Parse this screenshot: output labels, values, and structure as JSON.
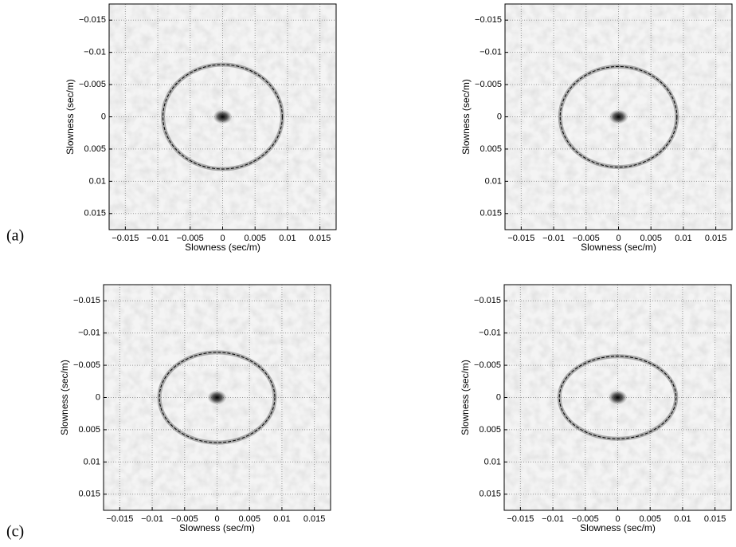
{
  "chart_data": [
    {
      "type": "slowness-map",
      "panel_label": "(a)",
      "xlabel": "Slowness (sec/m)",
      "ylabel": "Slowness (sec/m)",
      "xlim": [
        -0.0175,
        0.0175
      ],
      "ylim": [
        -0.0175,
        0.0175
      ],
      "y_reversed": true,
      "grid": true,
      "xticks": [
        {
          "value": -0.015,
          "label": "−0.015"
        },
        {
          "value": -0.01,
          "label": "−0.01"
        },
        {
          "value": -0.005,
          "label": "−0.005"
        },
        0,
        0.005,
        0.01,
        0.015
      ],
      "yticks": [
        {
          "value": -0.015,
          "label": "−0.015"
        },
        {
          "value": -0.01,
          "label": "−0.01"
        },
        {
          "value": -0.005,
          "label": "−0.005"
        },
        0,
        0.005,
        0.01,
        0.015
      ],
      "ellipse": {
        "cx": 0,
        "cy": 0,
        "rx": 0.0092,
        "ry": 0.0081
      }
    },
    {
      "type": "slowness-map",
      "xlabel": "Slowness (sec/m)",
      "ylabel": "Slowness (sec/m)",
      "xlim": [
        -0.0175,
        0.0175
      ],
      "ylim": [
        -0.0175,
        0.0175
      ],
      "y_reversed": true,
      "grid": true,
      "xticks": [
        {
          "value": -0.015,
          "label": "−0.015"
        },
        {
          "value": -0.01,
          "label": "−0.01"
        },
        {
          "value": -0.005,
          "label": "−0.005"
        },
        0,
        0.005,
        0.01,
        0.015
      ],
      "yticks": [
        {
          "value": -0.015,
          "label": "−0.015"
        },
        {
          "value": -0.01,
          "label": "−0.01"
        },
        {
          "value": -0.005,
          "label": "−0.005"
        },
        0,
        0.005,
        0.01,
        0.015
      ],
      "ellipse": {
        "cx": 0,
        "cy": 0,
        "rx": 0.009,
        "ry": 0.0078
      }
    },
    {
      "type": "slowness-map",
      "panel_label": "(c)",
      "xlabel": "Slowness (sec/m)",
      "ylabel": "Slowness (sec/m)",
      "xlim": [
        -0.0175,
        0.0175
      ],
      "ylim": [
        -0.0175,
        0.0175
      ],
      "y_reversed": true,
      "grid": true,
      "xticks": [
        {
          "value": -0.015,
          "label": "−0.015"
        },
        {
          "value": -0.01,
          "label": "−0.01"
        },
        {
          "value": -0.005,
          "label": "−0.005"
        },
        0,
        0.005,
        0.01,
        0.015
      ],
      "yticks": [
        {
          "value": -0.015,
          "label": "−0.015"
        },
        {
          "value": -0.01,
          "label": "−0.01"
        },
        {
          "value": -0.005,
          "label": "−0.005"
        },
        0,
        0.005,
        0.01,
        0.015
      ],
      "ellipse": {
        "cx": 0,
        "cy": 0,
        "rx": 0.0089,
        "ry": 0.007
      }
    },
    {
      "type": "slowness-map",
      "xlabel": "Slowness (sec/m)",
      "ylabel": "Slowness (sec/m)",
      "xlim": [
        -0.0175,
        0.0175
      ],
      "ylim": [
        -0.0175,
        0.0175
      ],
      "y_reversed": true,
      "grid": true,
      "xticks": [
        {
          "value": -0.015,
          "label": "−0.015"
        },
        {
          "value": -0.01,
          "label": "−0.01"
        },
        {
          "value": -0.005,
          "label": "−0.005"
        },
        0,
        0.005,
        0.01,
        0.015
      ],
      "yticks": [
        {
          "value": -0.015,
          "label": "−0.015"
        },
        {
          "value": -0.01,
          "label": "−0.01"
        },
        {
          "value": -0.005,
          "label": "−0.005"
        },
        0,
        0.005,
        0.01,
        0.015
      ],
      "ellipse": {
        "cx": 0,
        "cy": 0,
        "rx": 0.009,
        "ry": 0.0064
      }
    }
  ]
}
